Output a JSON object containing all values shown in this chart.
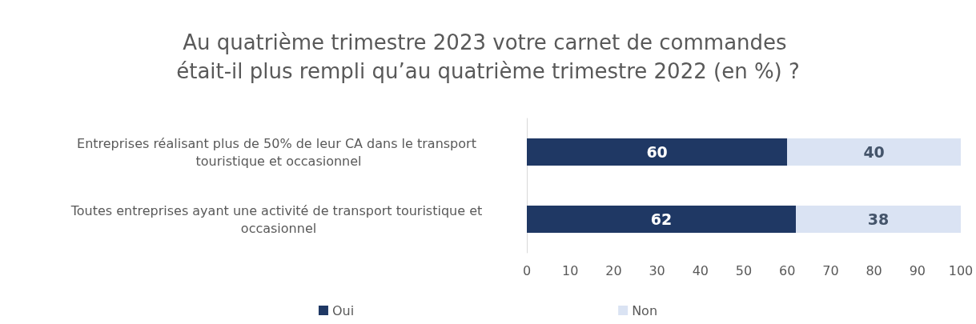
{
  "chart_data": {
    "type": "bar",
    "orientation": "horizontal",
    "stacked": true,
    "title": "Au quatrième trimestre 2023 votre carnet de commandes était-il plus rempli qu’au quatrième trimestre 2022 (en %) ?",
    "categories": [
      "Entreprises réalisant plus de 50% de leur CA dans le transport touristique et occasionnel",
      "Toutes entreprises ayant une activité de transport touristique et occasionnel"
    ],
    "series": [
      {
        "name": "Oui",
        "color": "#1f3864",
        "values": [
          60,
          62
        ]
      },
      {
        "name": "Non",
        "color": "#dae3f3",
        "values": [
          40,
          38
        ]
      }
    ],
    "xlim": [
      0,
      100
    ],
    "xticks": [
      0,
      10,
      20,
      30,
      40,
      50,
      60,
      70,
      80,
      90,
      100
    ],
    "data_labels": true,
    "legend": "bottom",
    "grid": false
  }
}
